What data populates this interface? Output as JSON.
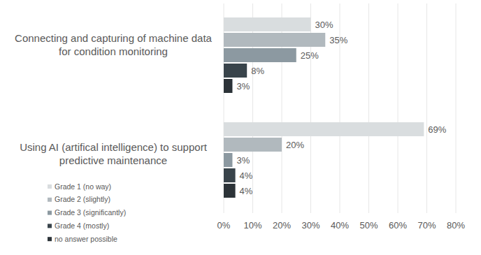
{
  "chart_data": {
    "type": "bar",
    "orientation": "horizontal",
    "categories": [
      "Connecting and capturing of machine data for condition monitoring",
      "Using AI (artifical intelligence) to support predictive maintenance"
    ],
    "series": [
      {
        "name": "Grade 1 (no way)",
        "color": "#d9dddf",
        "values": [
          30,
          69
        ],
        "value_labels": [
          "30%",
          "69%"
        ]
      },
      {
        "name": "Grade 2 (slightly)",
        "color": "#b1b9be",
        "values": [
          35,
          20
        ],
        "value_labels": [
          "35%",
          "20%"
        ]
      },
      {
        "name": "Grade 3 (significantly)",
        "color": "#8c99a1",
        "values": [
          25,
          3
        ],
        "value_labels": [
          "25%",
          "3%"
        ]
      },
      {
        "name": "Grade 4 (mostly)",
        "color": "#39444b",
        "values": [
          8,
          4
        ],
        "value_labels": [
          "8%",
          "4%"
        ]
      },
      {
        "name": "no answer possible",
        "color": "#2c3338",
        "values": [
          3,
          4
        ],
        "value_labels": [
          "3%",
          "4%"
        ]
      }
    ],
    "xlim": [
      0,
      80
    ],
    "xticks": [
      {
        "value": 0,
        "label": "0%"
      },
      {
        "value": 10,
        "label": "10%"
      },
      {
        "value": 20,
        "label": "20%"
      },
      {
        "value": 30,
        "label": "30%"
      },
      {
        "value": 40,
        "label": "40%"
      },
      {
        "value": 50,
        "label": "50%"
      },
      {
        "value": 60,
        "label": "60%"
      },
      {
        "value": 70,
        "label": "70%"
      },
      {
        "value": 80,
        "label": "80%"
      }
    ],
    "grid": true,
    "legend": "lower left",
    "data_labels": true
  }
}
